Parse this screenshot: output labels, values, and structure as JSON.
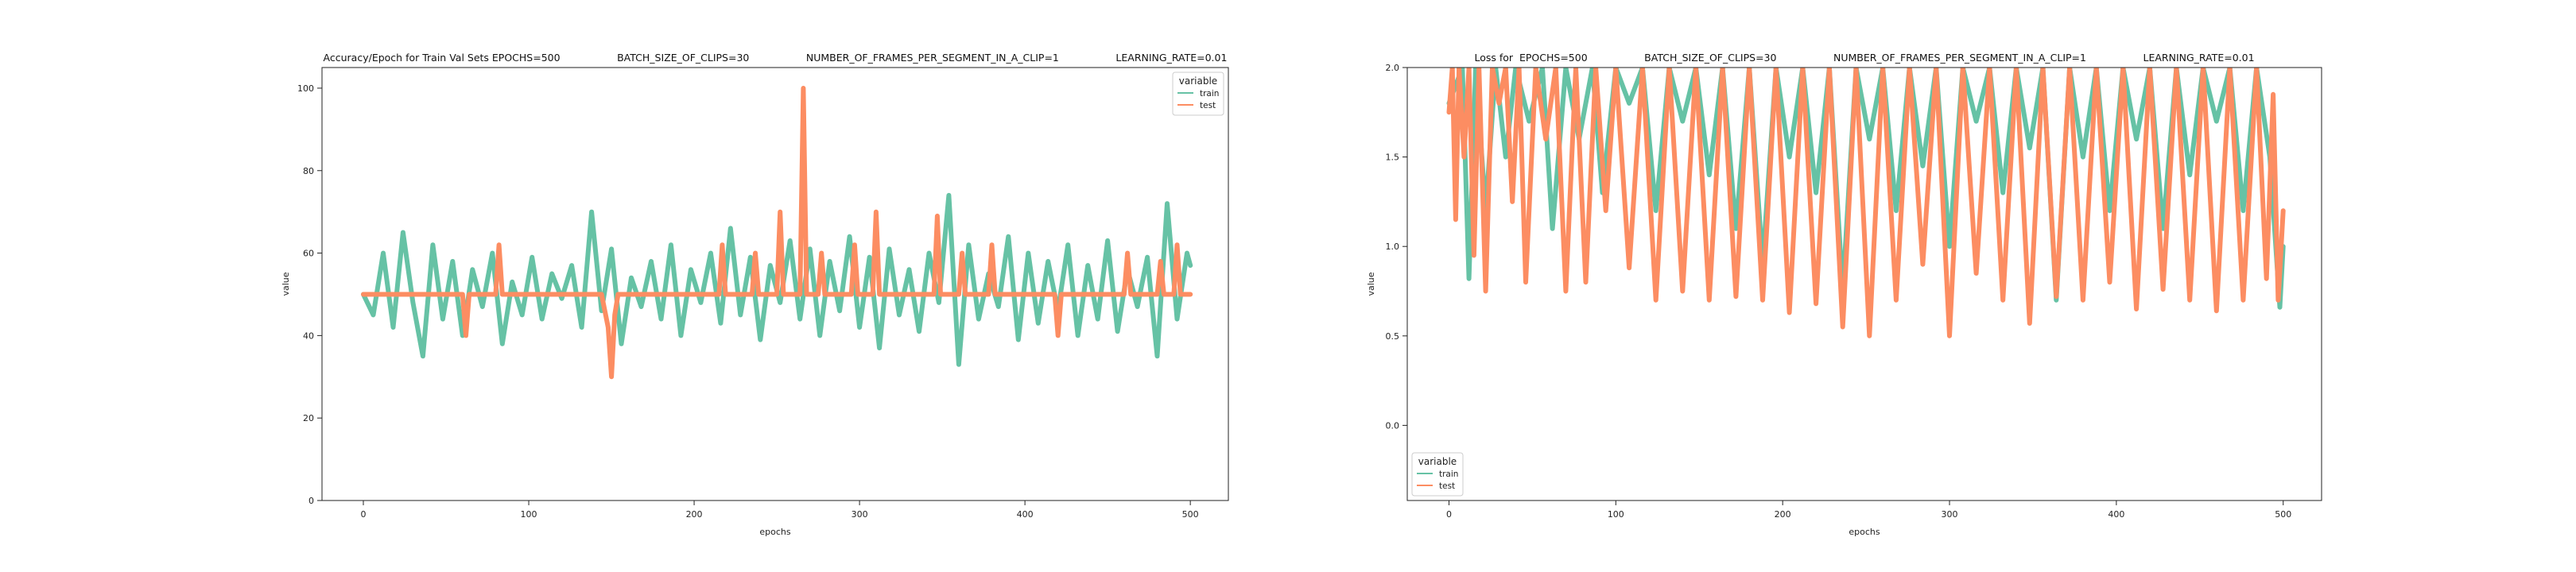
{
  "chart_data": [
    {
      "type": "line",
      "title": "Accuracy/Epoch for Train Val Sets EPOCHS=500                  BATCH_SIZE_OF_CLIPS=30                  NUMBER_OF_FRAMES_PER_SEGMENT_IN_A_CLIP=1                  LEARNING_RATE=0.01",
      "xlabel": "epochs",
      "ylabel": "value",
      "xlim": [
        -25,
        523
      ],
      "ylim": [
        0,
        105
      ],
      "xticks": [
        0,
        100,
        200,
        300,
        400,
        500
      ],
      "yticks": [
        0,
        20,
        40,
        60,
        80,
        100
      ],
      "grid": false,
      "legend": {
        "title": "variable",
        "placement": "top-right",
        "entries": [
          "train",
          "test"
        ]
      },
      "series": [
        {
          "name": "train",
          "color": "#66c2a5",
          "x": [
            0,
            6,
            12,
            18,
            24,
            30,
            36,
            42,
            48,
            54,
            60,
            66,
            72,
            78,
            84,
            90,
            96,
            102,
            108,
            114,
            120,
            126,
            132,
            138,
            144,
            150,
            156,
            162,
            168,
            174,
            180,
            186,
            192,
            198,
            204,
            210,
            216,
            222,
            228,
            234,
            240,
            246,
            252,
            258,
            264,
            270,
            276,
            282,
            288,
            294,
            300,
            306,
            312,
            318,
            324,
            330,
            336,
            342,
            348,
            354,
            360,
            366,
            372,
            378,
            384,
            390,
            396,
            402,
            408,
            414,
            420,
            426,
            432,
            438,
            444,
            450,
            456,
            462,
            468,
            474,
            480,
            486,
            492,
            498,
            500
          ],
          "values": [
            50,
            45,
            60,
            42,
            65,
            48,
            35,
            62,
            44,
            58,
            40,
            56,
            47,
            60,
            38,
            53,
            45,
            59,
            44,
            55,
            49,
            57,
            42,
            70,
            46,
            61,
            38,
            54,
            47,
            58,
            44,
            62,
            40,
            56,
            48,
            60,
            43,
            66,
            45,
            59,
            39,
            57,
            48,
            63,
            44,
            61,
            40,
            58,
            46,
            64,
            42,
            59,
            37,
            61,
            45,
            56,
            41,
            60,
            48,
            74,
            33,
            62,
            44,
            55,
            47,
            64,
            39,
            60,
            43,
            58,
            46,
            62,
            40,
            57,
            44,
            63,
            41,
            56,
            47,
            59,
            35,
            72,
            44,
            60,
            57
          ]
        },
        {
          "name": "test",
          "color": "#fc8d62",
          "x": [
            0,
            60,
            62,
            64,
            80,
            82,
            84,
            100,
            144,
            148,
            150,
            152,
            154,
            200,
            215,
            217,
            219,
            235,
            237,
            239,
            250,
            252,
            254,
            260,
            264,
            266,
            268,
            275,
            277,
            279,
            295,
            297,
            299,
            308,
            310,
            312,
            345,
            347,
            349,
            360,
            362,
            364,
            378,
            380,
            382,
            400,
            418,
            420,
            422,
            460,
            462,
            464,
            480,
            482,
            484,
            490,
            492,
            494,
            500
          ],
          "values": [
            50,
            50,
            40,
            50,
            50,
            62,
            50,
            50,
            50,
            42,
            30,
            45,
            50,
            50,
            50,
            62,
            50,
            50,
            60,
            50,
            50,
            70,
            50,
            50,
            50,
            100,
            50,
            50,
            60,
            50,
            50,
            62,
            50,
            50,
            70,
            50,
            50,
            69,
            50,
            50,
            60,
            50,
            50,
            62,
            50,
            50,
            50,
            40,
            50,
            50,
            60,
            50,
            50,
            58,
            50,
            50,
            62,
            50,
            50
          ]
        }
      ]
    },
    {
      "type": "line",
      "title": "Loss for  EPOCHS=500                  BATCH_SIZE_OF_CLIPS=30                  NUMBER_OF_FRAMES_PER_SEGMENT_IN_A_CLIP=1                  LEARNING_RATE=0.01",
      "xlabel": "epochs",
      "ylabel": "value",
      "xlim": [
        -25,
        523
      ],
      "ylim": [
        -0.42,
        2.0
      ],
      "xticks": [
        0,
        100,
        200,
        300,
        400,
        500
      ],
      "yticks": [
        0.0,
        0.5,
        1.0,
        1.5,
        2.0
      ],
      "ytick_labels": [
        "0.0",
        "0.5",
        "1.0",
        "1.5",
        "2.0"
      ],
      "grid": false,
      "legend": {
        "title": "variable",
        "placement": "bottom-left",
        "entries": [
          "train",
          "test"
        ]
      },
      "series": [
        {
          "name": "train",
          "color": "#66c2a5",
          "x": [
            0,
            8,
            12,
            16,
            22,
            28,
            34,
            40,
            48,
            56,
            62,
            70,
            78,
            86,
            92,
            100,
            108,
            116,
            124,
            132,
            140,
            148,
            156,
            164,
            172,
            180,
            188,
            196,
            204,
            212,
            220,
            228,
            236,
            244,
            252,
            260,
            268,
            276,
            284,
            292,
            300,
            308,
            316,
            324,
            332,
            340,
            348,
            356,
            364,
            372,
            380,
            388,
            396,
            404,
            412,
            420,
            428,
            436,
            444,
            452,
            460,
            468,
            476,
            484,
            492,
            498,
            500
          ],
          "values": [
            1.8,
            2.0,
            0.82,
            2.0,
            1.2,
            2.0,
            1.5,
            2.0,
            1.7,
            2.0,
            1.1,
            2.0,
            1.6,
            2.0,
            1.3,
            2.0,
            1.8,
            2.0,
            1.2,
            2.0,
            1.7,
            2.0,
            1.4,
            2.0,
            1.1,
            2.0,
            0.9,
            2.0,
            1.5,
            2.0,
            1.3,
            2.0,
            0.75,
            2.0,
            1.6,
            2.0,
            1.2,
            2.0,
            1.45,
            2.0,
            1.0,
            2.0,
            1.7,
            2.0,
            1.3,
            2.0,
            1.55,
            2.0,
            0.7,
            2.0,
            1.5,
            2.0,
            1.2,
            2.0,
            1.6,
            2.0,
            1.1,
            2.0,
            1.4,
            2.0,
            1.7,
            2.0,
            1.2,
            2.0,
            1.5,
            0.66,
            1.0
          ]
        },
        {
          "name": "test",
          "color": "#fc8d62",
          "x": [
            0,
            2,
            4,
            6,
            9,
            12,
            15,
            18,
            22,
            26,
            30,
            34,
            38,
            42,
            46,
            52,
            58,
            64,
            70,
            76,
            82,
            88,
            94,
            100,
            108,
            116,
            124,
            132,
            140,
            148,
            156,
            164,
            172,
            180,
            188,
            196,
            204,
            212,
            220,
            228,
            236,
            244,
            252,
            260,
            268,
            276,
            284,
            292,
            300,
            308,
            316,
            324,
            332,
            340,
            348,
            356,
            364,
            372,
            380,
            388,
            396,
            404,
            412,
            420,
            428,
            436,
            444,
            452,
            460,
            468,
            476,
            484,
            490,
            494,
            497,
            500
          ],
          "values": [
            1.75,
            2.0,
            1.15,
            2.0,
            1.5,
            2.0,
            0.95,
            2.0,
            0.75,
            2.0,
            1.8,
            2.0,
            1.25,
            2.0,
            0.8,
            2.0,
            1.6,
            2.0,
            0.75,
            2.0,
            0.8,
            2.0,
            1.2,
            2.0,
            0.88,
            2.0,
            0.7,
            2.0,
            0.75,
            2.0,
            0.7,
            2.0,
            0.72,
            2.0,
            0.7,
            2.0,
            0.63,
            2.0,
            0.68,
            2.0,
            0.55,
            2.0,
            0.5,
            2.0,
            0.7,
            2.0,
            0.9,
            2.0,
            0.5,
            2.0,
            0.85,
            2.0,
            0.7,
            2.0,
            0.57,
            2.0,
            0.72,
            2.0,
            0.7,
            2.0,
            0.8,
            2.0,
            0.65,
            2.0,
            0.76,
            2.0,
            0.7,
            2.0,
            0.64,
            2.0,
            0.7,
            2.0,
            0.82,
            1.85,
            0.7,
            1.2
          ]
        }
      ]
    }
  ]
}
